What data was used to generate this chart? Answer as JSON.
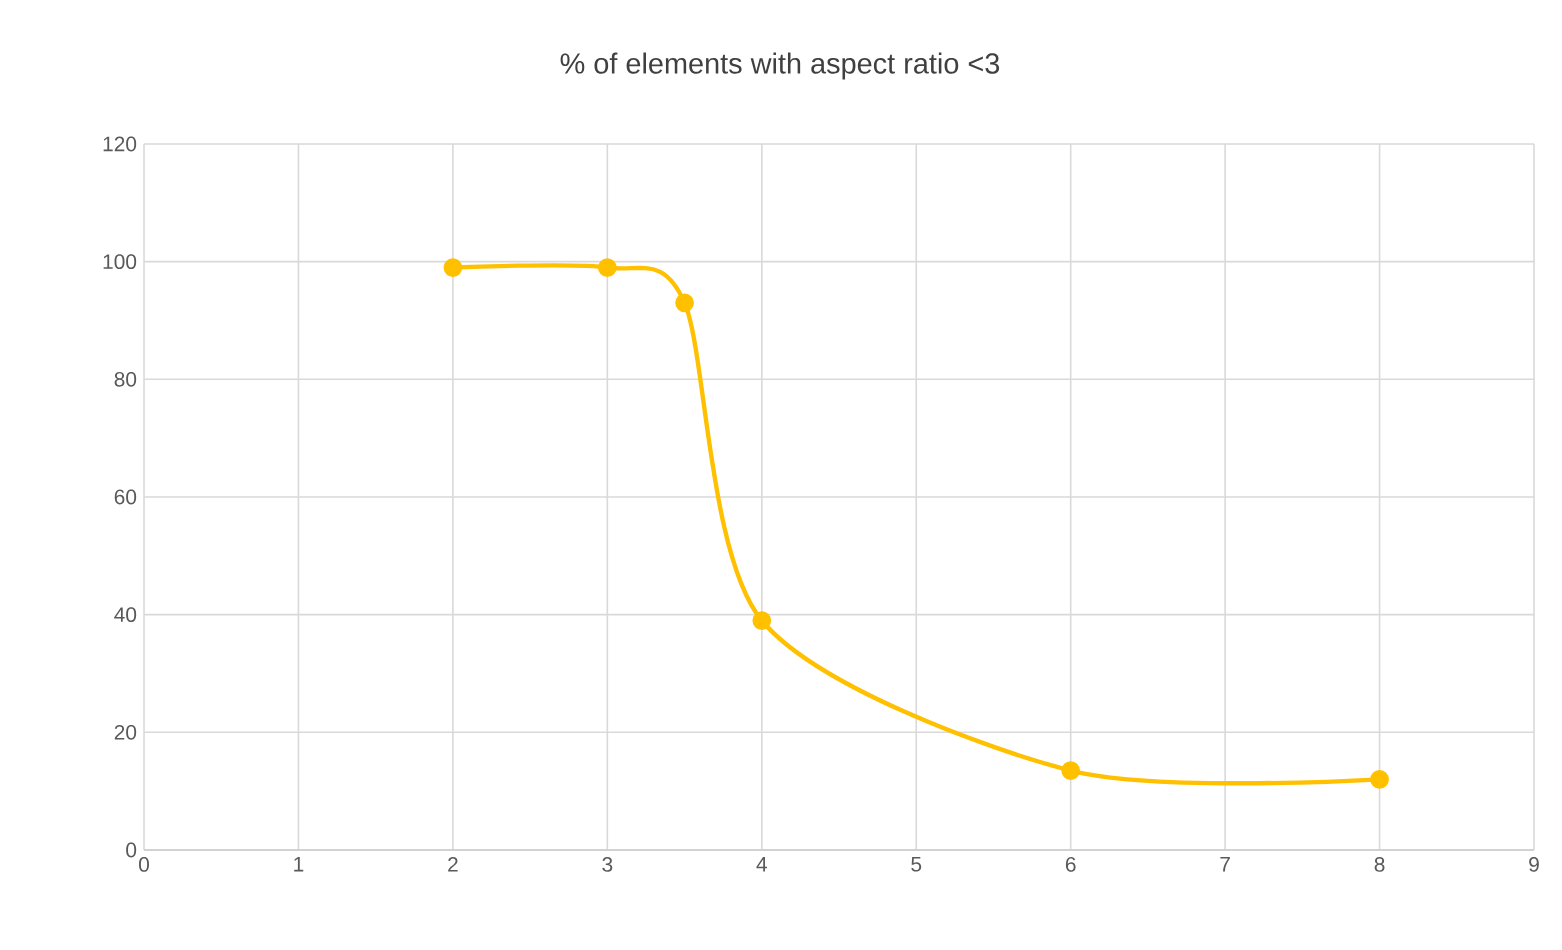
{
  "chart_data": {
    "type": "line",
    "title": "% of elements with aspect ratio <3",
    "x": [
      2,
      3,
      3.5,
      4,
      6,
      8
    ],
    "series": [
      {
        "color": "#ffc000",
        "values": [
          99,
          99,
          93,
          39,
          13.5,
          12
        ]
      }
    ],
    "xlim": [
      0,
      9
    ],
    "xticks": [
      0,
      1,
      2,
      3,
      4,
      5,
      6,
      7,
      8,
      9
    ],
    "ylim": [
      0,
      120
    ],
    "yticks": [
      0,
      20,
      40,
      60,
      80,
      100,
      120
    ],
    "grid": true,
    "marker": "circle"
  }
}
